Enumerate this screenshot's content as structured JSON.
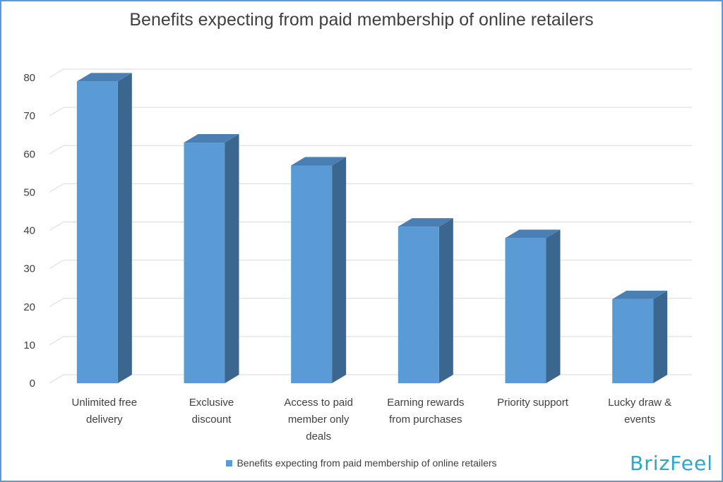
{
  "chart_data": {
    "type": "bar",
    "title": "Benefits expecting from paid membership of online retailers",
    "categories": [
      [
        "Unlimited free",
        "delivery"
      ],
      [
        "Exclusive",
        "discount"
      ],
      [
        "Access to paid",
        "member only",
        "deals"
      ],
      [
        "Earning rewards",
        "from purchases"
      ],
      [
        "Priority support"
      ],
      [
        "Lucky draw &",
        "events"
      ]
    ],
    "series": [
      {
        "name": "Benefits expecting from paid membership of online retailers",
        "values": [
          79,
          63,
          57,
          41,
          38,
          22
        ]
      }
    ],
    "ylim": [
      0,
      80
    ],
    "yticks": [
      0,
      10,
      20,
      30,
      40,
      50,
      60,
      70,
      80
    ],
    "grid": true,
    "legend_position": "bottom",
    "colors": {
      "bar_front": "#5b9bd5",
      "bar_side": "#3a6690",
      "bar_top": "#4a7fb3",
      "grid": "#d9d9d9",
      "frame": "#5b9bd5"
    }
  },
  "legend": {
    "label": "Benefits expecting from paid membership of online retailers"
  },
  "brand": {
    "label": "BrizFeel"
  }
}
